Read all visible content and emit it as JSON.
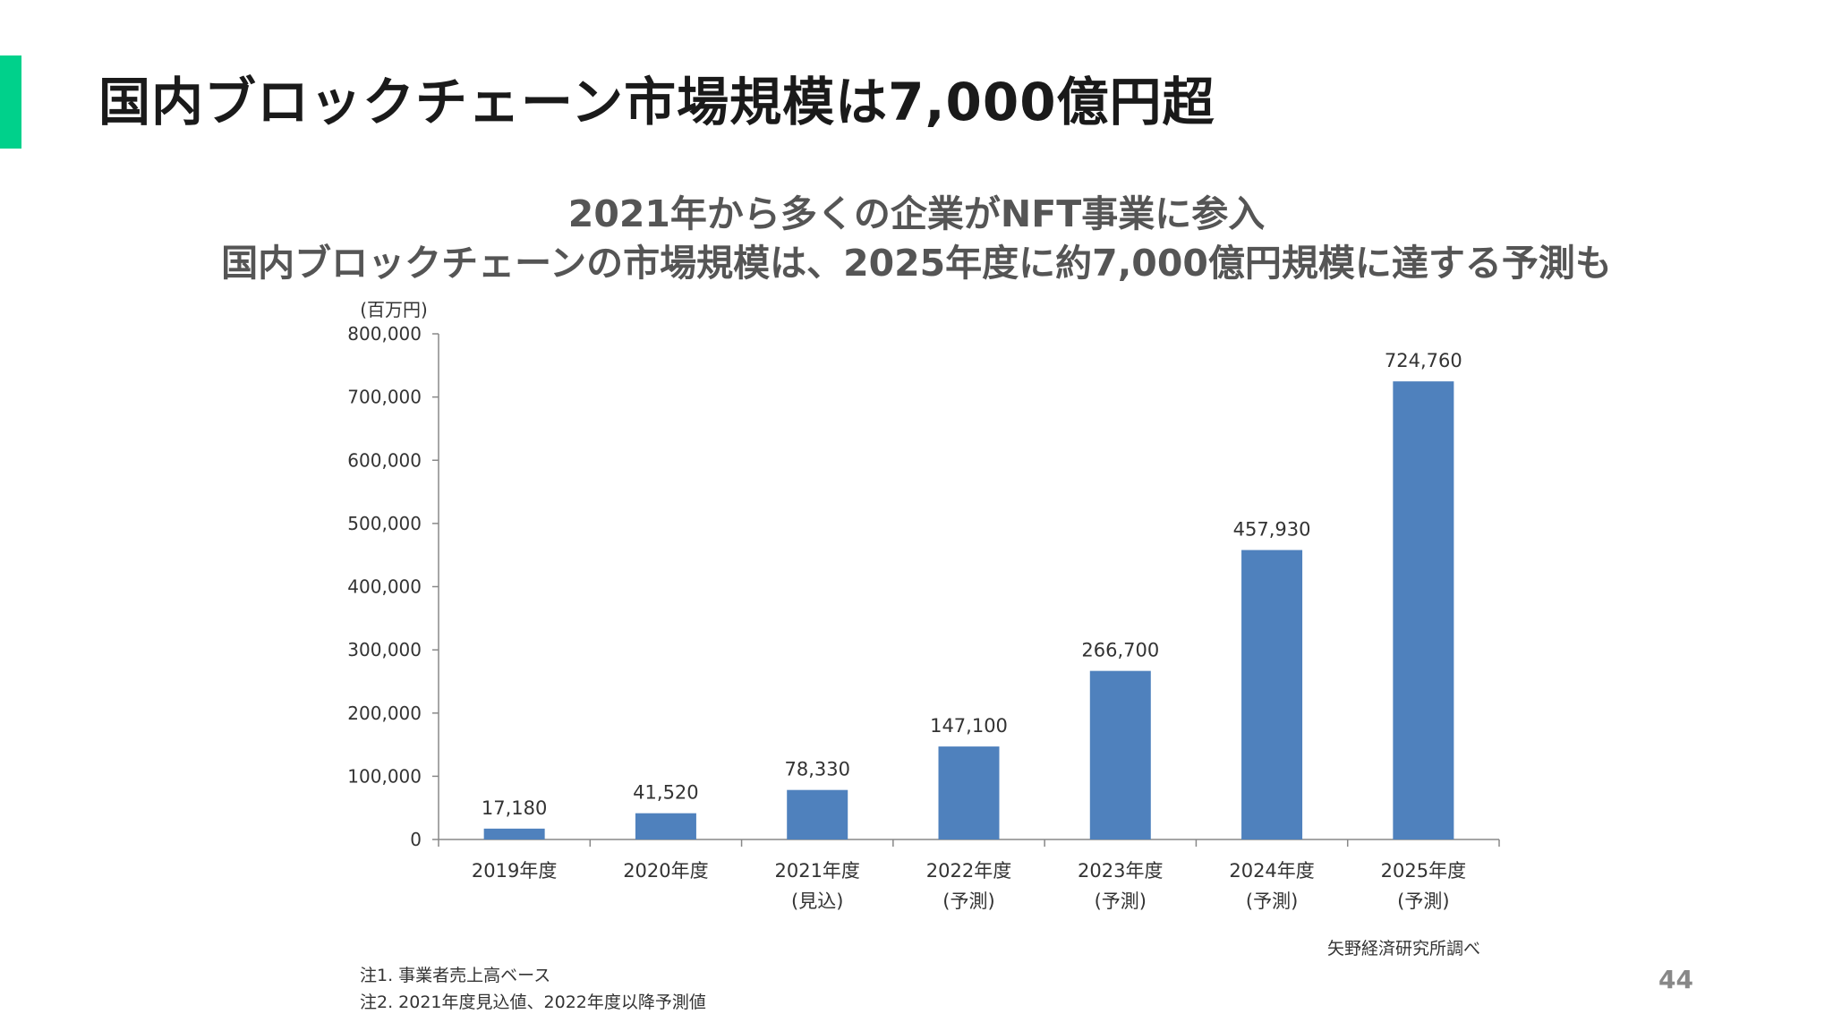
{
  "slide": {
    "title": "国内ブロックチェーン市場規模は7,000億円超",
    "subheading_line1": "2021年から多くの企業がNFT事業に参入",
    "subheading_line2": "国内ブロックチェーンの市場規模は、2025年度に約7,000億円規模に達する予測も",
    "notes": [
      "注1. 事業者売上高ベース",
      "注2. 2021年度見込値、2022年度以降予測値"
    ],
    "source": "矢野経済研究所調べ",
    "page_number": "44",
    "accent_color": "#00d18b"
  },
  "chart_data": {
    "type": "bar",
    "y_unit_label": "(百万円)",
    "categories": [
      [
        "2019年度",
        ""
      ],
      [
        "2020年度",
        ""
      ],
      [
        "2021年度",
        "(見込)"
      ],
      [
        "2022年度",
        "(予測)"
      ],
      [
        "2023年度",
        "(予測)"
      ],
      [
        "2024年度",
        "(予測)"
      ],
      [
        "2025年度",
        "(予測)"
      ]
    ],
    "values": [
      17180,
      41520,
      78330,
      147100,
      266700,
      457930,
      724760
    ],
    "value_labels": [
      "17,180",
      "41,520",
      "78,330",
      "147,100",
      "266,700",
      "457,930",
      "724,760"
    ],
    "ylim": [
      0,
      800000
    ],
    "y_ticks": [
      0,
      100000,
      200000,
      300000,
      400000,
      500000,
      600000,
      700000,
      800000
    ],
    "y_tick_labels": [
      "0",
      "100,000",
      "200,000",
      "300,000",
      "400,000",
      "500,000",
      "600,000",
      "700,000",
      "800,000"
    ],
    "bar_color": "#4f81bd",
    "axis_color": "#888888",
    "grid": false,
    "legend": "none"
  }
}
